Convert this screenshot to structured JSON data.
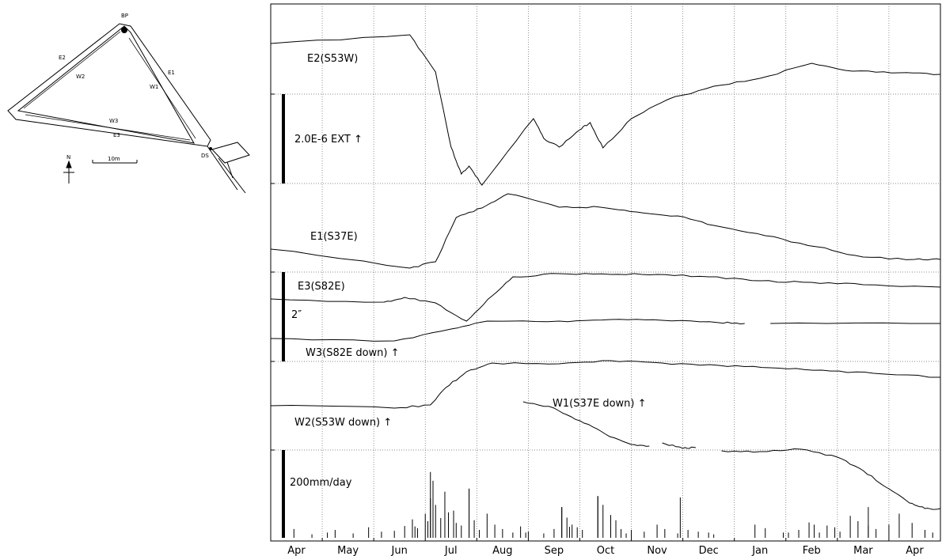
{
  "map": {
    "labels": {
      "bp": "BP",
      "ds": "DS",
      "e1": "E1",
      "e2": "E2",
      "e3": "E3",
      "w1": "W1",
      "w2": "W2",
      "w3": "W3",
      "north": "N",
      "scale": "10m"
    }
  },
  "chart_data": {
    "type": "line",
    "x": {
      "tick_labels": [
        "Apr",
        "May",
        "Jun",
        "Jul",
        "Aug",
        "Sep",
        "Oct",
        "Nov",
        "Dec",
        "Jan",
        "Feb",
        "Mar",
        "Apr"
      ],
      "grid": "vertical dotted lines at month boundaries"
    },
    "grid": true,
    "scale_bars": [
      {
        "label": "2.0E-6  EXT ↑",
        "applies_to": [
          "E1",
          "E2",
          "E3"
        ]
      },
      {
        "label": "2″",
        "applies_to": [
          "W1",
          "W2",
          "W3"
        ]
      },
      {
        "label": "200mm/day",
        "applies_to": [
          "rainfall"
        ]
      }
    ],
    "series": [
      {
        "name": "E2(S53W)",
        "points": [
          [
            0,
            55
          ],
          [
            2.7,
            44
          ],
          [
            3.2,
            91
          ],
          [
            3.5,
            186
          ],
          [
            3.7,
            220
          ],
          [
            3.85,
            210
          ],
          [
            4.1,
            234
          ],
          [
            5.1,
            150
          ],
          [
            5.3,
            175
          ],
          [
            5.6,
            186
          ],
          [
            6.0,
            164
          ],
          [
            6.2,
            155
          ],
          [
            6.45,
            187
          ],
          [
            7.0,
            150
          ],
          [
            7.7,
            126
          ],
          [
            8.6,
            109
          ],
          [
            9.5,
            99
          ],
          [
            10.5,
            80
          ],
          [
            11.3,
            90
          ],
          [
            12.2,
            92
          ],
          [
            13,
            94
          ]
        ]
      },
      {
        "name": "E1(S37E)",
        "points": [
          [
            0,
            315
          ],
          [
            2.7,
            339
          ],
          [
            3.2,
            331
          ],
          [
            3.6,
            275
          ],
          [
            4.1,
            263
          ],
          [
            4.6,
            245
          ],
          [
            5.6,
            262
          ],
          [
            6.4,
            262
          ],
          [
            7.1,
            268
          ],
          [
            7.9,
            273
          ],
          [
            8.6,
            285
          ],
          [
            9.6,
            298
          ],
          [
            10.6,
            312
          ],
          [
            11.5,
            325
          ],
          [
            12.5,
            328
          ],
          [
            13,
            328
          ]
        ]
      },
      {
        "name": "E3(S82E)",
        "points": [
          [
            0,
            378
          ],
          [
            2.2,
            382
          ],
          [
            2.6,
            376
          ],
          [
            3.2,
            383
          ],
          [
            3.8,
            406
          ],
          [
            4.3,
            374
          ],
          [
            4.7,
            350
          ],
          [
            5.6,
            346
          ],
          [
            6.6,
            347
          ],
          [
            7.5,
            347
          ],
          [
            8.5,
            350
          ],
          [
            9.5,
            355
          ],
          [
            10.5,
            357
          ],
          [
            11.5,
            360
          ],
          [
            13,
            363
          ]
        ]
      },
      {
        "name": "W3(S82E down) ↑",
        "points": [
          [
            0,
            428
          ],
          [
            2.4,
            431
          ],
          [
            3.5,
            416
          ],
          [
            4.2,
            406
          ],
          [
            5.6,
            406
          ],
          [
            6.6,
            404
          ],
          [
            7.6,
            405
          ],
          [
            8.7,
            408
          ],
          [
            9.2,
            409
          ],
          null,
          [
            9.7,
            409
          ],
          [
            13,
            409
          ]
        ]
      },
      {
        "name": "W2(S53W down) ↑",
        "points": [
          [
            0,
            513
          ],
          [
            2.4,
            516
          ],
          [
            3.1,
            512
          ],
          [
            3.4,
            490
          ],
          [
            3.8,
            470
          ],
          [
            4.3,
            459
          ],
          [
            5.6,
            460
          ],
          [
            6.6,
            456
          ],
          [
            7.6,
            459
          ],
          [
            8.7,
            462
          ],
          [
            9.7,
            465
          ],
          [
            10.7,
            468
          ],
          [
            11.7,
            472
          ],
          [
            13,
            477
          ]
        ]
      },
      {
        "name": "W1(S37E down) ↑",
        "points": [
          [
            4.9,
            508
          ],
          [
            5.5,
            516
          ],
          [
            6.0,
            532
          ],
          [
            6.5,
            549
          ],
          [
            7.0,
            562
          ],
          [
            7.35,
            564
          ],
          null,
          [
            7.6,
            560
          ],
          [
            8.0,
            567
          ],
          [
            8.25,
            566
          ],
          null,
          [
            8.75,
            570
          ],
          [
            9.5,
            571
          ],
          [
            10.3,
            568
          ],
          [
            11.0,
            578
          ],
          [
            11.5,
            595
          ],
          [
            12.0,
            618
          ],
          [
            12.4,
            636
          ],
          [
            12.7,
            643
          ],
          [
            13,
            643
          ]
        ]
      },
      {
        "name": "rainfall",
        "points": []
      }
    ],
    "rainfall_bars": [
      [
        0.45,
        20
      ],
      [
        0.8,
        8
      ],
      [
        1.1,
        12
      ],
      [
        1.25,
        18
      ],
      [
        1.6,
        10
      ],
      [
        1.9,
        24
      ],
      [
        2.15,
        14
      ],
      [
        2.4,
        16
      ],
      [
        2.6,
        27
      ],
      [
        2.75,
        42
      ],
      [
        2.85,
        22
      ],
      [
        3.0,
        55
      ],
      [
        3.05,
        38
      ],
      [
        3.1,
        90
      ],
      [
        3.15,
        130
      ],
      [
        3.2,
        75
      ],
      [
        3.3,
        45
      ],
      [
        3.38,
        105
      ],
      [
        3.45,
        58
      ],
      [
        3.55,
        62
      ],
      [
        3.6,
        34
      ],
      [
        3.7,
        28
      ],
      [
        3.85,
        112
      ],
      [
        3.95,
        40
      ],
      [
        4.05,
        18
      ],
      [
        4.2,
        55
      ],
      [
        4.35,
        30
      ],
      [
        4.5,
        20
      ],
      [
        4.7,
        12
      ],
      [
        4.85,
        26
      ],
      [
        5.0,
        14
      ],
      [
        5.3,
        10
      ],
      [
        5.5,
        20
      ],
      [
        5.65,
        70
      ],
      [
        5.75,
        46
      ],
      [
        5.85,
        30
      ],
      [
        5.95,
        24
      ],
      [
        6.05,
        18
      ],
      [
        6.35,
        95
      ],
      [
        6.45,
        75
      ],
      [
        6.6,
        52
      ],
      [
        6.7,
        40
      ],
      [
        6.8,
        20
      ],
      [
        7.0,
        18
      ],
      [
        7.25,
        14
      ],
      [
        7.5,
        30
      ],
      [
        7.65,
        20
      ],
      [
        7.9,
        10
      ],
      [
        8.1,
        18
      ],
      [
        8.3,
        14
      ],
      [
        8.5,
        12
      ],
      [
        8.6,
        8
      ],
      [
        9.4,
        30
      ],
      [
        9.6,
        22
      ],
      [
        10.05,
        12
      ],
      [
        10.25,
        18
      ],
      [
        10.45,
        35
      ],
      [
        10.55,
        30
      ],
      [
        10.65,
        12
      ],
      [
        10.8,
        28
      ],
      [
        10.95,
        24
      ],
      [
        11.05,
        14
      ],
      [
        11.25,
        50
      ],
      [
        11.4,
        38
      ],
      [
        11.6,
        28
      ],
      [
        11.75,
        20
      ],
      [
        12.0,
        30
      ],
      [
        12.2,
        55
      ],
      [
        12.45,
        34
      ],
      [
        12.7,
        18
      ],
      [
        12.85,
        12
      ],
      [
        9.95,
        12
      ],
      [
        2.8,
        26
      ],
      [
        4.95,
        12
      ],
      [
        5.8,
        25
      ],
      [
        6.9,
        10
      ]
    ]
  }
}
